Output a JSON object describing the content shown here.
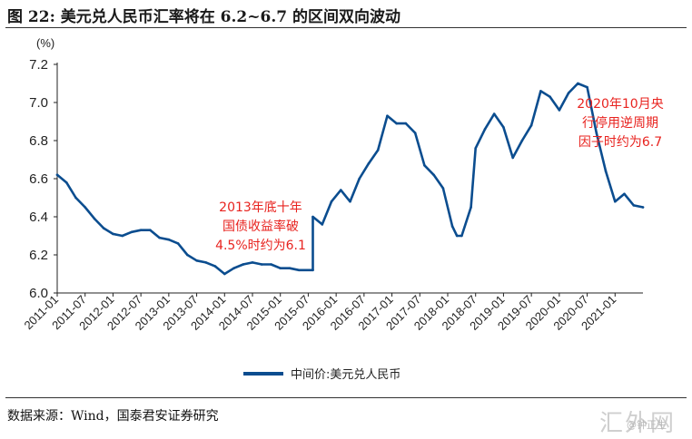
{
  "figure": {
    "title": "图 22:  美元兑人民币汇率将在 6.2~6.7  的区间双向波动",
    "unit": "(%)",
    "source": "数据来源：Wind，国泰君安证券研究",
    "watermark": "汇外网",
    "watermark_small": "@钟正生"
  },
  "colors": {
    "series": "#0b4d8f",
    "annotation": "#e8231f",
    "axis": "#222222"
  },
  "chart_data": {
    "type": "line",
    "title": "",
    "xlabel": "",
    "ylabel": "(%)",
    "ylim": [
      6.0,
      7.2
    ],
    "yticks": [
      "6.0",
      "6.2",
      "6.4",
      "6.6",
      "6.8",
      "7.0",
      "7.2"
    ],
    "xlim": [
      "2011-01",
      "2021-07"
    ],
    "xticks": [
      "2011-01",
      "2011-07",
      "2012-01",
      "2012-07",
      "2013-01",
      "2013-07",
      "2014-01",
      "2014-07",
      "2015-01",
      "2015-07",
      "2016-01",
      "2016-07",
      "2017-01",
      "2017-07",
      "2018-01",
      "2018-07",
      "2019-01",
      "2019-07",
      "2020-01",
      "2020-07",
      "2021-01"
    ],
    "grid": false,
    "legend": "bottom-center",
    "series": [
      {
        "name": "中间价:美元兑人民币",
        "x": [
          "2011-01",
          "2011-03",
          "2011-05",
          "2011-07",
          "2011-09",
          "2011-11",
          "2012-01",
          "2012-03",
          "2012-05",
          "2012-07",
          "2012-09",
          "2012-11",
          "2013-01",
          "2013-03",
          "2013-05",
          "2013-07",
          "2013-09",
          "2013-11",
          "2014-01",
          "2014-03",
          "2014-05",
          "2014-07",
          "2014-09",
          "2014-11",
          "2015-01",
          "2015-03",
          "2015-05",
          "2015-08",
          "2015-08",
          "2015-10",
          "2015-12",
          "2016-02",
          "2016-04",
          "2016-06",
          "2016-08",
          "2016-10",
          "2016-12",
          "2017-02",
          "2017-04",
          "2017-06",
          "2017-08",
          "2017-10",
          "2017-12",
          "2018-02",
          "2018-03",
          "2018-04",
          "2018-06",
          "2018-07",
          "2018-09",
          "2018-11",
          "2019-01",
          "2019-03",
          "2019-05",
          "2019-07",
          "2019-09",
          "2019-11",
          "2020-01",
          "2020-03",
          "2020-05",
          "2020-07",
          "2020-09",
          "2020-11",
          "2021-01",
          "2021-03",
          "2021-05",
          "2021-07"
        ],
        "values": [
          6.62,
          6.58,
          6.5,
          6.45,
          6.39,
          6.34,
          6.31,
          6.3,
          6.32,
          6.33,
          6.33,
          6.29,
          6.28,
          6.26,
          6.2,
          6.17,
          6.16,
          6.14,
          6.1,
          6.13,
          6.15,
          6.16,
          6.15,
          6.15,
          6.13,
          6.13,
          6.12,
          6.12,
          6.4,
          6.36,
          6.48,
          6.54,
          6.48,
          6.6,
          6.68,
          6.75,
          6.93,
          6.89,
          6.89,
          6.84,
          6.67,
          6.62,
          6.55,
          6.35,
          6.3,
          6.3,
          6.45,
          6.76,
          6.86,
          6.94,
          6.87,
          6.71,
          6.8,
          6.88,
          7.06,
          7.03,
          6.96,
          7.05,
          7.1,
          7.08,
          6.84,
          6.64,
          6.48,
          6.52,
          6.46,
          6.45
        ]
      }
    ],
    "annotations": [
      {
        "lines": [
          "2013年底十年",
          "国债收益率破",
          "4.5%时约为6.1"
        ]
      },
      {
        "lines": [
          "2020年10月央",
          "行停用逆周期",
          "因子时约为6.7"
        ]
      }
    ]
  }
}
